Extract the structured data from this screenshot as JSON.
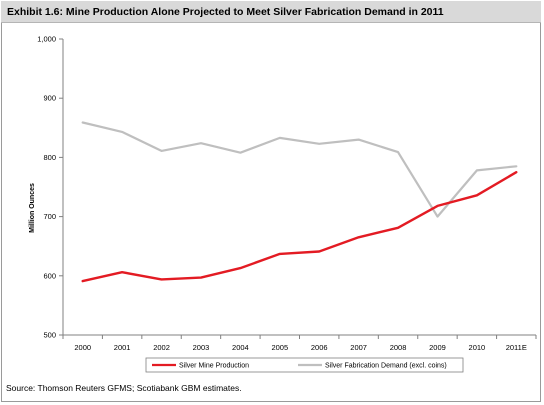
{
  "title": "Exhibit 1.6: Mine Production Alone Projected to Meet Silver Fabrication Demand in 2011",
  "source": "Source: Thomson Reuters GFMS; Scotiabank GBM estimates.",
  "chart_data": {
    "type": "line",
    "title": "Exhibit 1.6: Mine Production Alone Projected to Meet Silver Fabrication Demand in 2011",
    "xlabel": "",
    "ylabel": "Million Ounces",
    "categories": [
      "2000",
      "2001",
      "2002",
      "2003",
      "2004",
      "2005",
      "2006",
      "2007",
      "2008",
      "2009",
      "2010",
      "2011E"
    ],
    "ylim": [
      500,
      1000
    ],
    "yticks": [
      500,
      600,
      700,
      800,
      900,
      1000
    ],
    "ytick_labels": [
      "500",
      "600",
      "700",
      "800",
      "900",
      "1,000"
    ],
    "grid": false,
    "legend_position": "bottom",
    "series": [
      {
        "name": "Silver Mine Production",
        "color": "#e31b23",
        "values": [
          591,
          606,
          594,
          597,
          613,
          637,
          641,
          665,
          681,
          718,
          736,
          775
        ]
      },
      {
        "name": "Silver Fabrication Demand (excl. coins)",
        "color": "#bfbfbf",
        "values": [
          859,
          843,
          811,
          824,
          808,
          833,
          823,
          830,
          809,
          700,
          778,
          785
        ]
      }
    ]
  }
}
